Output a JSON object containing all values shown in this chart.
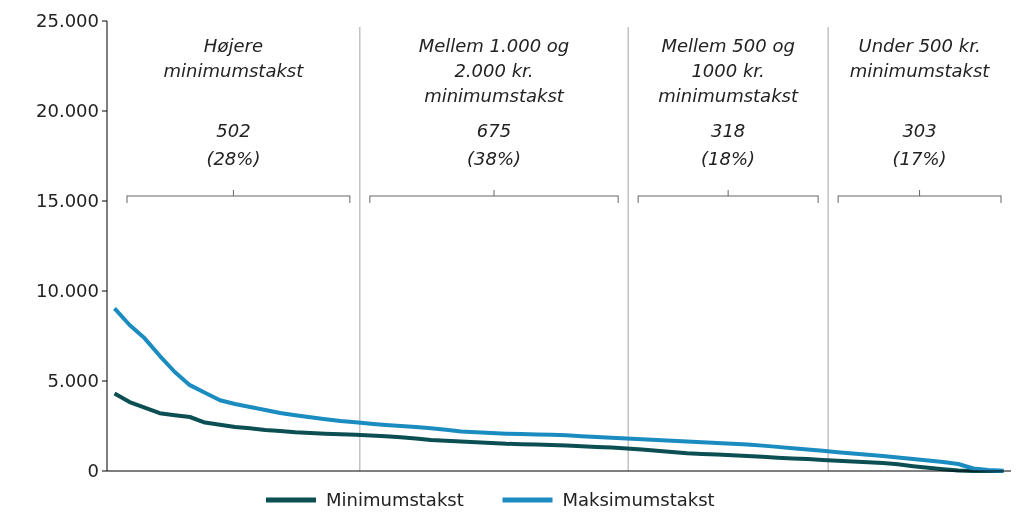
{
  "chart_data": {
    "type": "line",
    "categories": [
      null,
      null,
      null,
      null,
      null,
      null,
      null,
      null,
      null,
      null,
      null,
      null,
      null,
      null,
      null,
      null,
      null,
      null,
      null,
      null,
      null,
      null,
      null,
      null,
      null,
      null,
      null,
      null,
      null,
      null,
      null,
      null,
      null,
      null,
      null,
      null,
      null,
      null,
      null,
      null,
      null,
      null,
      null,
      null,
      null,
      null,
      null,
      null,
      null,
      null,
      null,
      null,
      null,
      null,
      null,
      null,
      null,
      null,
      null,
      null
    ],
    "ylim": [
      0,
      25000
    ],
    "yticks": [
      {
        "value": 0,
        "label": "0"
      },
      {
        "value": 5000,
        "label": "5.000"
      },
      {
        "value": 10000,
        "label": "10.000"
      },
      {
        "value": 15000,
        "label": "15.000"
      },
      {
        "value": 20000,
        "label": "20.000"
      },
      {
        "value": 25000,
        "label": "25.000"
      }
    ],
    "tick_labels": "y",
    "legend": "bottom",
    "series": [
      {
        "name": "Minimumstakst",
        "color": "#0b4f52",
        "values": [
          4300,
          3830,
          3520,
          3210,
          3100,
          3000,
          2690,
          2570,
          2450,
          2370,
          2280,
          2220,
          2150,
          2110,
          2070,
          2040,
          2010,
          1970,
          1930,
          1870,
          1800,
          1720,
          1680,
          1640,
          1600,
          1560,
          1510,
          1490,
          1470,
          1450,
          1420,
          1380,
          1340,
          1300,
          1250,
          1190,
          1120,
          1060,
          990,
          950,
          910,
          870,
          830,
          790,
          740,
          700,
          660,
          610,
          570,
          530,
          490,
          450,
          370,
          270,
          180,
          100,
          30,
          0,
          0,
          0
        ]
      },
      {
        "name": "Maksimumstakst",
        "color": "#1a8cbf",
        "values": [
          9030,
          8110,
          7370,
          6400,
          5500,
          4770,
          4350,
          3930,
          3720,
          3560,
          3390,
          3220,
          3100,
          2990,
          2880,
          2780,
          2710,
          2630,
          2560,
          2500,
          2440,
          2370,
          2290,
          2200,
          2150,
          2110,
          2070,
          2050,
          2030,
          2010,
          1980,
          1930,
          1890,
          1850,
          1800,
          1760,
          1720,
          1680,
          1640,
          1600,
          1550,
          1510,
          1470,
          1410,
          1340,
          1260,
          1190,
          1120,
          1040,
          970,
          900,
          830,
          750,
          670,
          580,
          500,
          390,
          140,
          60,
          20
        ]
      }
    ],
    "annotations": [
      "Højere\nminimumstakst",
      "502\n(28%)",
      "Mellem 1.000 og\n2.000 kr.\nminimumstakst",
      "675\n(38%)",
      "Mellem 500 og\n1000 kr.\nminimumstakst",
      "318\n(18%)",
      "Under 500 kr.\nminimumstakst",
      "303\n(17%)"
    ]
  }
}
